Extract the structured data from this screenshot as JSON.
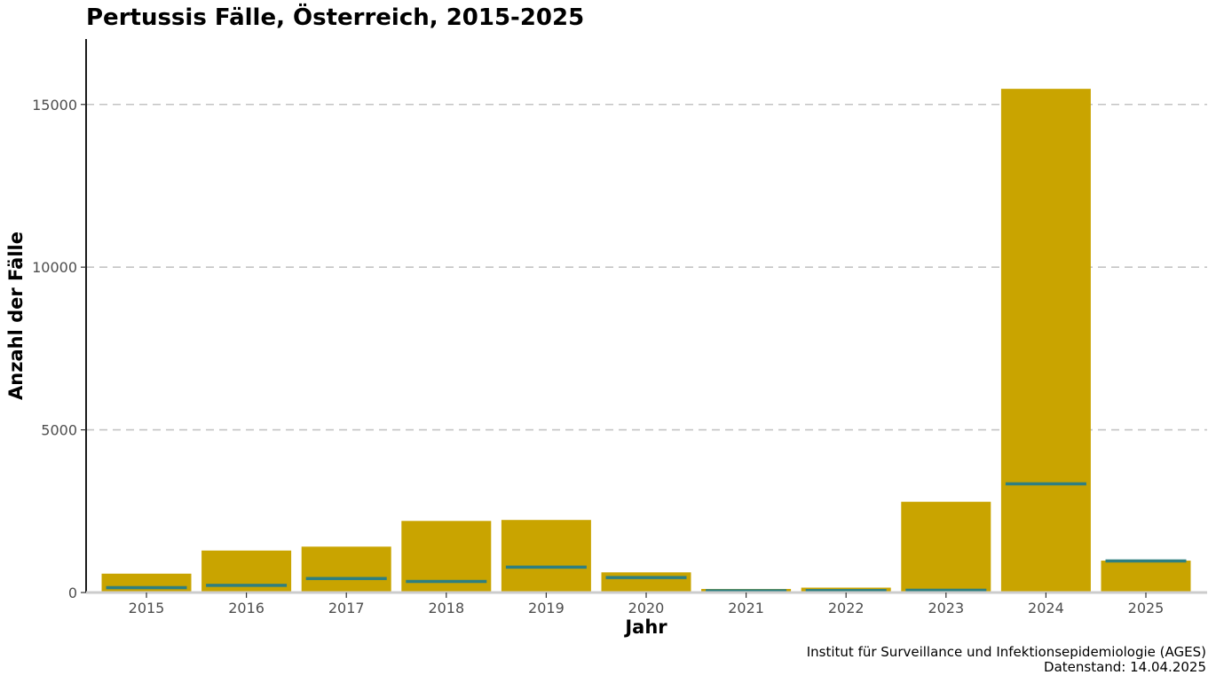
{
  "chart_data": {
    "type": "bar",
    "title": "Pertussis Fälle, Österreich, 2015-2025",
    "xlabel": "Jahr",
    "ylabel": "Anzahl der Fälle",
    "categories": [
      "2015",
      "2016",
      "2017",
      "2018",
      "2019",
      "2020",
      "2021",
      "2022",
      "2023",
      "2024",
      "2025"
    ],
    "series": [
      {
        "values": [
          580,
          1290,
          1410,
          2200,
          2230,
          620,
          110,
          150,
          2790,
          15480,
          980
        ],
        "color": "#c9a400"
      },
      {
        "values": [
          150,
          220,
          430,
          340,
          780,
          460,
          55,
          60,
          70,
          3340,
          970
        ],
        "color": "#2e7f80",
        "style": "segment"
      }
    ],
    "ylim": [
      0,
      17000
    ],
    "yticks": [
      0,
      5000,
      10000,
      15000
    ],
    "grid": "horizontal dashed",
    "legend": "none",
    "caption": [
      "Institut für Surveillance und Infektionsepidemiologie (AGES)",
      "Datenstand: 14.04.2025"
    ]
  }
}
